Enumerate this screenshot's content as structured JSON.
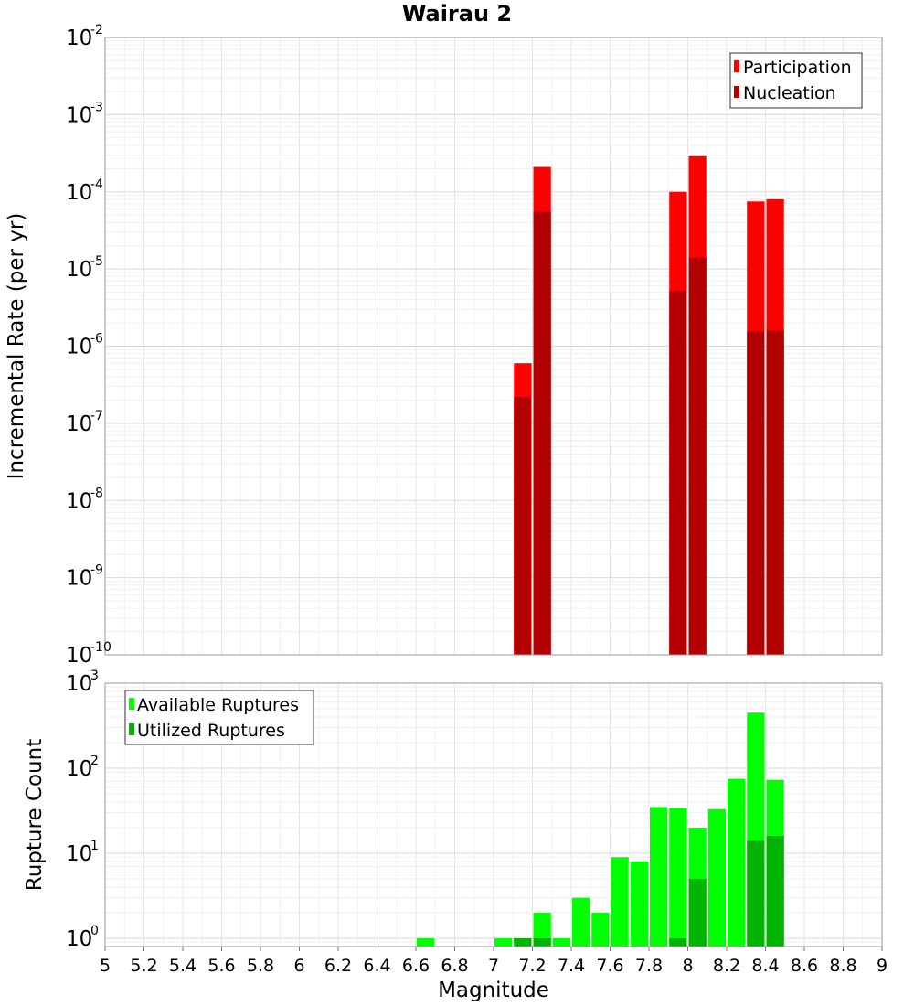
{
  "chart_data": [
    {
      "type": "bar",
      "title": "Wairau 2",
      "ylabel": "Incremental Rate (per yr)",
      "xlabel": "",
      "x_bin_width": 0.1,
      "xlim": [
        5,
        9
      ],
      "ylim": [
        1e-10,
        0.01
      ],
      "yscale": "log",
      "y_tick_labels": [
        {
          "base": "10",
          "exp": "-10"
        },
        {
          "base": "10",
          "exp": "-9"
        },
        {
          "base": "10",
          "exp": "-8"
        },
        {
          "base": "10",
          "exp": "-7"
        },
        {
          "base": "10",
          "exp": "-6"
        },
        {
          "base": "10",
          "exp": "-5"
        },
        {
          "base": "10",
          "exp": "-4"
        },
        {
          "base": "10",
          "exp": "-3"
        },
        {
          "base": "10",
          "exp": "-2"
        }
      ],
      "grid": true,
      "legend_position": "top-right",
      "series": [
        {
          "name": "Participation",
          "color": "#ff0000",
          "x": [
            7.15,
            7.25,
            7.95,
            8.05,
            8.35,
            8.45
          ],
          "values": [
            6e-07,
            0.00021,
            0.0001,
            0.00029,
            7.5e-05,
            8e-05
          ]
        },
        {
          "name": "Nucleation",
          "color": "#b20000",
          "x": [
            7.15,
            7.25,
            7.95,
            8.05,
            8.35,
            8.45
          ],
          "values": [
            2.2e-07,
            5.5e-05,
            5.2e-06,
            1.4e-05,
            1.55e-06,
            1.6e-06
          ]
        }
      ]
    },
    {
      "type": "bar",
      "title": "",
      "ylabel": "Rupture Count",
      "xlabel": "Magnitude",
      "x_bin_width": 0.1,
      "xlim": [
        5,
        9
      ],
      "ylim": [
        0.8,
        1000
      ],
      "yscale": "log",
      "x_tick_labels": [
        "5",
        "5.2",
        "5.4",
        "5.6",
        "5.8",
        "6",
        "6.2",
        "6.4",
        "6.6",
        "6.8",
        "7",
        "7.2",
        "7.4",
        "7.6",
        "7.8",
        "8",
        "8.2",
        "8.4",
        "8.6",
        "8.8",
        "9"
      ],
      "y_tick_labels": [
        {
          "base": "10",
          "exp": "0"
        },
        {
          "base": "10",
          "exp": "1"
        },
        {
          "base": "10",
          "exp": "2"
        },
        {
          "base": "10",
          "exp": "3"
        }
      ],
      "grid": true,
      "legend_position": "top-left",
      "series": [
        {
          "name": "Available Ruptures",
          "color": "#00ff00",
          "x": [
            6.65,
            7.05,
            7.15,
            7.25,
            7.35,
            7.45,
            7.55,
            7.65,
            7.75,
            7.85,
            7.95,
            8.05,
            8.15,
            8.25,
            8.35,
            8.45
          ],
          "values": [
            1,
            1,
            1,
            2,
            1,
            3,
            2,
            9,
            8,
            35,
            34,
            20,
            33,
            75,
            450,
            73
          ]
        },
        {
          "name": "Utilized Ruptures",
          "color": "#00b400",
          "x": [
            7.15,
            7.25,
            7.95,
            8.05,
            8.35,
            8.45
          ],
          "values": [
            1,
            1,
            1,
            5,
            14,
            16
          ]
        }
      ]
    }
  ]
}
